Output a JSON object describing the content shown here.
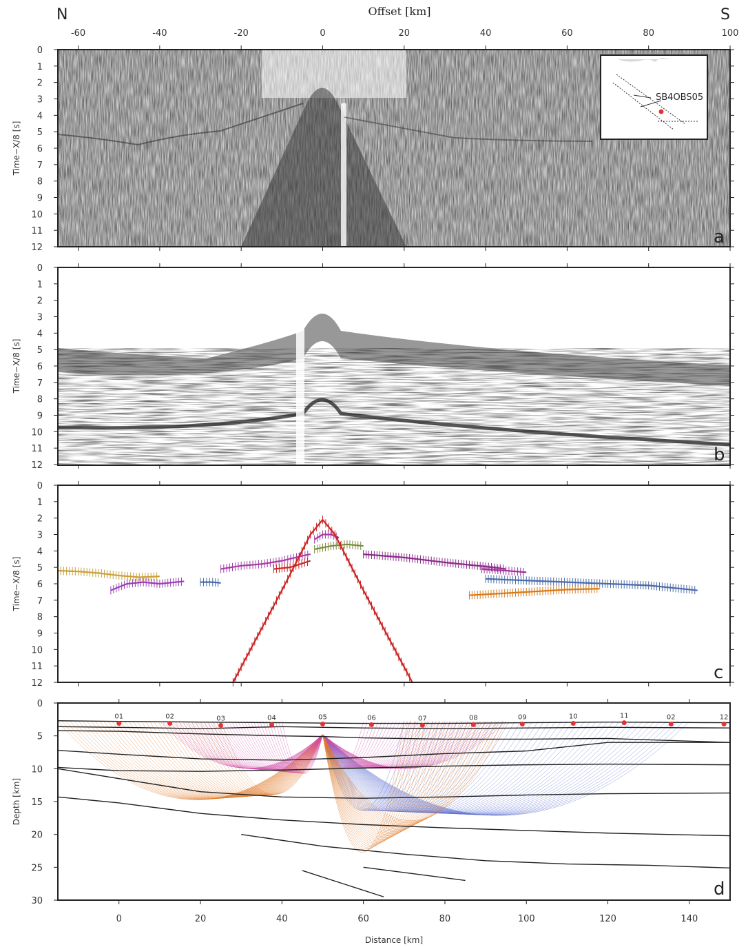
{
  "header": {
    "offset_label": "Offset [km]",
    "north": "N",
    "south": "S"
  },
  "panels": {
    "a": {
      "letter": "a",
      "ylabel": "Time−X/8 [s]"
    },
    "b": {
      "letter": "b",
      "ylabel": "Time−X/8 [s]"
    },
    "c": {
      "letter": "c",
      "ylabel": "Time−X/8 [s]"
    },
    "d": {
      "letter": "d",
      "ylabel": "Depth [km]",
      "xlabel": "Distance [km]"
    }
  },
  "inset": {
    "station_label": "SB4OBS05"
  },
  "chart_data": [
    {
      "panel": "a",
      "type": "heatmap",
      "description": "Recorded seismic section (wiggle/density traces)",
      "x_axis": {
        "label": "Offset [km]",
        "range": [
          -65,
          100
        ],
        "ticks": [
          -60,
          -40,
          -20,
          0,
          20,
          40,
          60,
          80,
          100
        ]
      },
      "y_axis": {
        "label": "Time−X/8 [s]",
        "range": [
          0,
          12
        ],
        "ticks": [
          0,
          1,
          2,
          3,
          4,
          5,
          6,
          7,
          8,
          9,
          10,
          11,
          12
        ]
      }
    },
    {
      "panel": "b",
      "type": "heatmap",
      "description": "Synthetic seismic section",
      "x_axis": {
        "range": [
          -65,
          100
        ]
      },
      "y_axis": {
        "label": "Time−X/8 [s]",
        "range": [
          0,
          12
        ],
        "ticks": [
          0,
          1,
          2,
          3,
          4,
          5,
          6,
          7,
          8,
          9,
          10,
          11,
          12
        ]
      }
    },
    {
      "panel": "c",
      "type": "scatter",
      "description": "Picked travel times (error bars) and calculated curves",
      "x_axis": {
        "range": [
          -65,
          100
        ]
      },
      "y_axis": {
        "label": "Time−X/8 [s]",
        "range": [
          0,
          12
        ],
        "ticks": [
          0,
          1,
          2,
          3,
          4,
          5,
          6,
          7,
          8,
          9,
          10,
          11,
          12
        ]
      },
      "series": [
        {
          "color": "#c9a13a",
          "x": [
            -65,
            -60,
            -55,
            -50,
            -45,
            -40
          ],
          "y": [
            5.2,
            5.25,
            5.35,
            5.5,
            5.6,
            5.55
          ]
        },
        {
          "color": "#9a3fb4",
          "x": [
            -52,
            -48,
            -44,
            -40,
            -36,
            -34
          ],
          "y": [
            6.4,
            6.0,
            5.9,
            6.0,
            5.9,
            5.85
          ]
        },
        {
          "color": "#4a6aa8",
          "x": [
            -30,
            -27,
            -25
          ],
          "y": [
            5.9,
            5.9,
            5.95
          ]
        },
        {
          "color": "#a43ca8",
          "x": [
            -25,
            -20,
            -15,
            -10,
            -5,
            -3
          ],
          "y": [
            5.1,
            4.9,
            4.8,
            4.6,
            4.3,
            4.2
          ]
        },
        {
          "color": "#cc2222",
          "x": [
            -12,
            -8,
            -3
          ],
          "y": [
            5.1,
            5.0,
            4.6
          ]
        },
        {
          "color": "#7a8a3a",
          "x": [
            -2,
            2,
            6,
            10
          ],
          "y": [
            3.9,
            3.7,
            3.6,
            3.7
          ]
        },
        {
          "color": "#a33aa8",
          "x": [
            -2,
            0,
            2,
            4
          ],
          "y": [
            3.3,
            3.0,
            3.0,
            3.2
          ]
        },
        {
          "color": "#8a2a8a",
          "x": [
            10,
            20,
            30,
            40,
            45
          ],
          "y": [
            4.2,
            4.4,
            4.7,
            4.95,
            5.1
          ]
        },
        {
          "color": "#a0309a",
          "x": [
            39,
            45,
            50
          ],
          "y": [
            5.1,
            5.2,
            5.3
          ]
        },
        {
          "color": "#4a6aa8",
          "x": [
            40,
            60,
            80,
            92
          ],
          "y": [
            5.7,
            5.9,
            6.1,
            6.4
          ]
        },
        {
          "color": "#d57a1a",
          "x": [
            36,
            50,
            60,
            68
          ],
          "y": [
            6.7,
            6.5,
            6.35,
            6.3
          ]
        },
        {
          "color": "#cc2222",
          "x": [
            -22,
            -10,
            -3,
            0,
            3,
            10,
            22
          ],
          "y": [
            12,
            6.4,
            3.0,
            2.1,
            3.0,
            6.4,
            12
          ]
        }
      ]
    },
    {
      "panel": "d",
      "type": "line",
      "description": "Velocity model with ray paths and OBS positions",
      "x_axis": {
        "label": "Distance [km]",
        "range": [
          -15,
          150
        ],
        "ticks": [
          0,
          20,
          40,
          60,
          80,
          100,
          120,
          140
        ]
      },
      "y_axis": {
        "label": "Depth [km]",
        "range": [
          0,
          30
        ],
        "ticks": [
          0,
          5,
          10,
          15,
          20,
          25,
          30
        ]
      },
      "stations": [
        {
          "label": "01",
          "x": 0,
          "depth": 3.1
        },
        {
          "label": "02",
          "x": 12.5,
          "depth": 3.1
        },
        {
          "label": "03",
          "x": 25,
          "depth": 3.4
        },
        {
          "label": "04",
          "x": 37.5,
          "depth": 3.3
        },
        {
          "label": "05",
          "x": 50,
          "depth": 3.2
        },
        {
          "label": "06",
          "x": 62,
          "depth": 3.3
        },
        {
          "label": "07",
          "x": 74.5,
          "depth": 3.4
        },
        {
          "label": "08",
          "x": 87,
          "depth": 3.3
        },
        {
          "label": "09",
          "x": 99,
          "depth": 3.2
        },
        {
          "label": "10",
          "x": 111.5,
          "depth": 3.1
        },
        {
          "label": "11",
          "x": 124,
          "depth": 3.0
        },
        {
          "label": "02",
          "x": 135.5,
          "depth": 3.2
        },
        {
          "label": "12",
          "x": 148.5,
          "depth": 3.2
        }
      ],
      "layers": [
        {
          "x": [
            -15,
            0,
            20,
            40,
            60,
            80,
            100,
            120,
            150
          ],
          "y": [
            2.7,
            2.8,
            2.9,
            3.0,
            3.1,
            3.1,
            3.0,
            2.9,
            3.0
          ]
        },
        {
          "x": [
            -15,
            0,
            20,
            40,
            60,
            80,
            100,
            120,
            150
          ],
          "y": [
            3.6,
            3.7,
            3.9,
            3.6,
            3.8,
            3.9,
            3.8,
            3.7,
            3.8
          ]
        },
        {
          "x": [
            -15,
            0,
            20,
            40,
            50,
            60,
            80,
            100,
            120,
            150
          ],
          "y": [
            4.2,
            4.3,
            4.7,
            5.0,
            5.1,
            5.3,
            5.5,
            5.5,
            5.4,
            6.0
          ]
        },
        {
          "x": [
            -15,
            0,
            20,
            40,
            60,
            80,
            100,
            120,
            150
          ],
          "y": [
            7.2,
            7.8,
            8.5,
            8.7,
            8.3,
            7.7,
            7.3,
            6.0,
            6.0
          ]
        },
        {
          "x": [
            -15,
            0,
            20,
            40,
            60,
            80,
            100,
            120,
            150
          ],
          "y": [
            9.8,
            10.3,
            10.4,
            10.2,
            9.9,
            9.6,
            9.4,
            9.3,
            9.4
          ]
        },
        {
          "x": [
            -15,
            0,
            20,
            40,
            60,
            80,
            100,
            120,
            150
          ],
          "y": [
            10.0,
            11.5,
            13.5,
            14.3,
            14.5,
            14.3,
            14.0,
            13.8,
            13.7
          ]
        },
        {
          "x": [
            -15,
            0,
            20,
            40,
            60,
            80,
            100,
            120,
            150
          ],
          "y": [
            14.3,
            15.2,
            16.8,
            17.8,
            18.5,
            19.0,
            19.4,
            19.8,
            20.2
          ]
        },
        {
          "x": [
            30,
            50,
            70,
            90,
            110,
            130,
            150
          ],
          "y": [
            20.0,
            21.8,
            23.0,
            24.0,
            24.5,
            24.7,
            25.1
          ]
        },
        {
          "x": [
            60,
            85
          ],
          "y": [
            25.0,
            27.0
          ]
        },
        {
          "x": [
            45,
            65
          ],
          "y": [
            25.5,
            29.5
          ]
        }
      ]
    }
  ]
}
